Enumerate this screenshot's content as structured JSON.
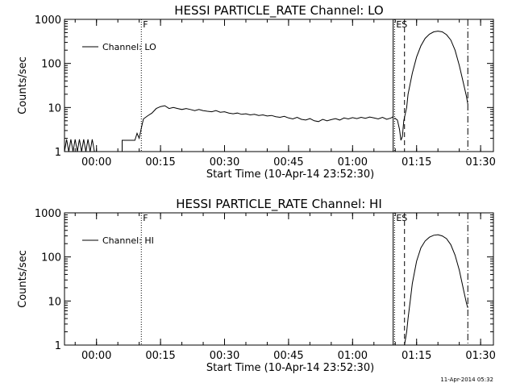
{
  "footer_stamp": "11-Apr-2014 05:32",
  "chart_data": [
    {
      "type": "line",
      "title": "HESSI PARTICLE_RATE Channel: LO",
      "xlabel": "Start Time (10-Apr-14 23:52:30)",
      "ylabel": "Counts/sec",
      "y_scale": "log",
      "ylim": [
        1,
        1000
      ],
      "xlim": [
        "23:52:30",
        "01:33:00"
      ],
      "x_ticks": [
        "00:00",
        "00:15",
        "00:30",
        "00:45",
        "01:00",
        "01:15",
        "01:30"
      ],
      "y_ticks": [
        "1",
        "10",
        "100",
        "1000"
      ],
      "legend": {
        "position": "top-left",
        "entries": [
          "Channel: LO"
        ]
      },
      "markers": [
        {
          "time": "00:10:30",
          "label": "F",
          "style": "dotted"
        },
        {
          "time": "01:09:30",
          "label": "",
          "style": "solid"
        },
        {
          "time": "01:09:50",
          "label": "ES",
          "style": "dotted"
        },
        {
          "time": "01:12:10",
          "label": "",
          "style": "dashed"
        },
        {
          "time": "01:27:00",
          "label": "",
          "style": "dash-dot"
        }
      ],
      "series": [
        {
          "segments": [
            [
              [
                "23:52:30",
                1
              ],
              [
                "23:53:00",
                1.9
              ],
              [
                "23:53:30",
                1
              ],
              [
                "23:54:00",
                1.9
              ],
              [
                "23:54:30",
                1
              ],
              [
                "23:55:00",
                1.9
              ],
              [
                "23:55:30",
                1
              ],
              [
                "23:56:00",
                1.9
              ],
              [
                "23:56:30",
                1
              ],
              [
                "23:57:00",
                1.9
              ],
              [
                "23:57:30",
                1
              ],
              [
                "23:58:00",
                1.9
              ],
              [
                "23:58:30",
                1
              ],
              [
                "23:59:00",
                1.9
              ],
              [
                "23:59:30",
                1
              ]
            ],
            [
              [
                "00:06:00",
                1
              ],
              [
                "00:06:00",
                1.8
              ],
              [
                "00:09:00",
                1.8
              ],
              [
                "00:09:30",
                2.6
              ],
              [
                "00:10:00",
                2.0
              ],
              [
                "00:10:30",
                3.4
              ],
              [
                "00:11:00",
                5.5
              ],
              [
                "00:12:00",
                6.5
              ],
              [
                "00:13:00",
                7.5
              ],
              [
                "00:14:00",
                9.5
              ],
              [
                "00:15:00",
                10.5
              ],
              [
                "00:16:00",
                11
              ],
              [
                "00:17:00",
                9.5
              ],
              [
                "00:18:00",
                10
              ],
              [
                "00:19:00",
                9.5
              ],
              [
                "00:20:00",
                9
              ],
              [
                "00:21:00",
                9.5
              ],
              [
                "00:22:00",
                9
              ],
              [
                "00:23:00",
                8.5
              ],
              [
                "00:24:00",
                9
              ],
              [
                "00:25:00",
                8.5
              ],
              [
                "00:26:00",
                8.2
              ],
              [
                "00:27:00",
                8
              ],
              [
                "00:28:00",
                8.5
              ],
              [
                "00:29:00",
                7.8
              ],
              [
                "00:30:00",
                8
              ],
              [
                "00:31:00",
                7.5
              ],
              [
                "00:32:00",
                7.2
              ],
              [
                "00:33:00",
                7.5
              ],
              [
                "00:34:00",
                7.0
              ],
              [
                "00:35:00",
                7.2
              ],
              [
                "00:36:00",
                6.8
              ],
              [
                "00:37:00",
                7.0
              ],
              [
                "00:38:00",
                6.6
              ],
              [
                "00:39:00",
                6.8
              ],
              [
                "00:40:00",
                6.4
              ],
              [
                "00:41:00",
                6.6
              ],
              [
                "00:42:00",
                6.2
              ],
              [
                "00:43:00",
                6.0
              ],
              [
                "00:44:00",
                6.3
              ],
              [
                "00:45:00",
                5.8
              ],
              [
                "00:46:00",
                5.5
              ],
              [
                "00:47:00",
                6.0
              ],
              [
                "00:48:00",
                5.4
              ],
              [
                "00:49:00",
                5.2
              ],
              [
                "00:50:00",
                5.6
              ],
              [
                "00:51:00",
                5.0
              ],
              [
                "00:52:00",
                4.8
              ],
              [
                "00:53:00",
                5.4
              ],
              [
                "00:54:00",
                5.0
              ],
              [
                "00:55:00",
                5.3
              ],
              [
                "00:56:00",
                5.6
              ],
              [
                "00:57:00",
                5.2
              ],
              [
                "00:58:00",
                5.8
              ],
              [
                "00:59:00",
                5.5
              ],
              [
                "01:00:00",
                5.9
              ],
              [
                "01:01:00",
                5.6
              ],
              [
                "01:02:00",
                6.0
              ],
              [
                "01:03:00",
                5.7
              ],
              [
                "01:04:00",
                6.1
              ],
              [
                "01:05:00",
                5.8
              ],
              [
                "01:06:00",
                5.5
              ],
              [
                "01:07:00",
                6.0
              ],
              [
                "01:08:00",
                5.4
              ],
              [
                "01:09:00",
                5.8
              ],
              [
                "01:09:30",
                6.2
              ]
            ],
            [
              [
                "01:09:50",
                5.8
              ],
              [
                "01:10:30",
                5.2
              ],
              [
                "01:11:00",
                3.2
              ],
              [
                "01:11:20",
                1.8
              ],
              [
                "01:11:40",
                2.2
              ],
              [
                "01:12:00",
                5
              ],
              [
                "01:12:40",
                10
              ],
              [
                "01:13:00",
                20
              ],
              [
                "01:14:00",
                60
              ],
              [
                "01:15:00",
                140
              ],
              [
                "01:16:00",
                250
              ],
              [
                "01:17:00",
                370
              ],
              [
                "01:18:00",
                460
              ],
              [
                "01:19:00",
                520
              ],
              [
                "01:20:00",
                540
              ],
              [
                "01:21:00",
                520
              ],
              [
                "01:22:00",
                450
              ],
              [
                "01:23:00",
                340
              ],
              [
                "01:24:00",
                200
              ],
              [
                "01:25:00",
                90
              ],
              [
                "01:26:00",
                35
              ],
              [
                "01:26:40",
                18
              ],
              [
                "01:27:00",
                12
              ]
            ]
          ]
        }
      ]
    },
    {
      "type": "line",
      "title": "HESSI PARTICLE_RATE Channel: HI",
      "xlabel": "Start Time (10-Apr-14 23:52:30)",
      "ylabel": "Counts/sec",
      "y_scale": "log",
      "ylim": [
        1,
        1000
      ],
      "xlim": [
        "23:52:30",
        "01:33:00"
      ],
      "x_ticks": [
        "00:00",
        "00:15",
        "00:30",
        "00:45",
        "01:00",
        "01:15",
        "01:30"
      ],
      "y_ticks": [
        "1",
        "10",
        "100",
        "1000"
      ],
      "legend": {
        "position": "top-left",
        "entries": [
          "Channel: HI"
        ]
      },
      "markers": [
        {
          "time": "00:10:30",
          "label": "F",
          "style": "dotted"
        },
        {
          "time": "01:09:30",
          "label": "",
          "style": "solid"
        },
        {
          "time": "01:09:50",
          "label": "ES",
          "style": "dotted"
        },
        {
          "time": "01:12:10",
          "label": "",
          "style": "dashed"
        },
        {
          "time": "01:27:00",
          "label": "",
          "style": "dash-dot"
        }
      ],
      "series": [
        {
          "segments": [
            [
              [
                "01:12:10",
                1
              ],
              [
                "01:12:40",
                2
              ],
              [
                "01:13:00",
                4
              ],
              [
                "01:13:30",
                10
              ],
              [
                "01:14:00",
                25
              ],
              [
                "01:15:00",
                80
              ],
              [
                "01:16:00",
                160
              ],
              [
                "01:17:00",
                230
              ],
              [
                "01:18:00",
                280
              ],
              [
                "01:19:00",
                310
              ],
              [
                "01:20:00",
                320
              ],
              [
                "01:21:00",
                300
              ],
              [
                "01:22:00",
                260
              ],
              [
                "01:23:00",
                190
              ],
              [
                "01:24:00",
                110
              ],
              [
                "01:25:00",
                50
              ],
              [
                "01:26:00",
                18
              ],
              [
                "01:26:40",
                9
              ],
              [
                "01:27:00",
                7
              ]
            ]
          ]
        }
      ]
    }
  ]
}
